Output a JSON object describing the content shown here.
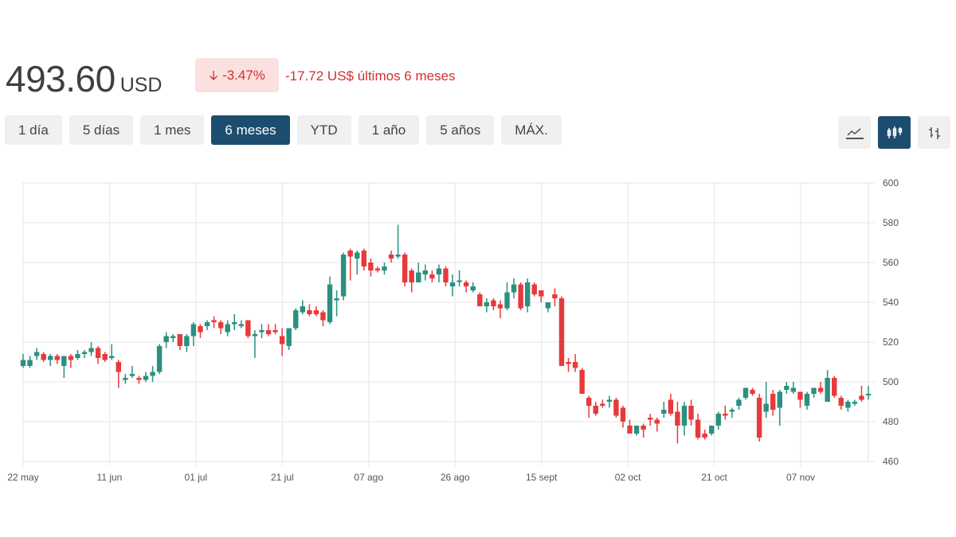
{
  "header": {
    "price": "493.60",
    "currency": "USD",
    "change_pct": "-3.47%",
    "change_text": "-17.72 US$ últimos 6 meses",
    "arrow_icon": "arrow-down-icon"
  },
  "ranges": [
    {
      "label": "1 día"
    },
    {
      "label": "5 días"
    },
    {
      "label": "1 mes"
    },
    {
      "label": "6 meses",
      "active": true
    },
    {
      "label": "YTD"
    },
    {
      "label": "1 año"
    },
    {
      "label": "5 años"
    },
    {
      "label": "MÁX."
    }
  ],
  "views": [
    {
      "icon": "line-chart-icon"
    },
    {
      "icon": "candlestick-icon",
      "active": true
    },
    {
      "icon": "ohlc-bar-icon"
    }
  ],
  "colors": {
    "up": "#2a9080",
    "down": "#e8393b",
    "accent": "#1d4d6e"
  },
  "chart_data": {
    "type": "candlestick",
    "ylim": [
      460,
      600
    ],
    "yticks": [
      600,
      580,
      560,
      540,
      520,
      500,
      480,
      460
    ],
    "xticks": [
      {
        "label": "22 may",
        "index": 0
      },
      {
        "label": "11 jun",
        "index": 13
      },
      {
        "label": "01 jul",
        "index": 26
      },
      {
        "label": "21 jul",
        "index": 39
      },
      {
        "label": "07 ago",
        "index": 52
      },
      {
        "label": "26 ago",
        "index": 65
      },
      {
        "label": "15 sept",
        "index": 78
      },
      {
        "label": "02 oct",
        "index": 91
      },
      {
        "label": "21 oct",
        "index": 104
      },
      {
        "label": "07 nov",
        "index": 117
      }
    ],
    "ohlc": [
      [
        508,
        514,
        507,
        511
      ],
      [
        508,
        513,
        507,
        511
      ],
      [
        513,
        517,
        511,
        515
      ],
      [
        514,
        515,
        510,
        511
      ],
      [
        511,
        514,
        508,
        513
      ],
      [
        513,
        514,
        509,
        511
      ],
      [
        508,
        513,
        502,
        513
      ],
      [
        513,
        514,
        507,
        511
      ],
      [
        512,
        516,
        511,
        514
      ],
      [
        514,
        516,
        512,
        515
      ],
      [
        515,
        520,
        513,
        517
      ],
      [
        517,
        518,
        509,
        512
      ],
      [
        514,
        515,
        510,
        511
      ],
      [
        512,
        519,
        511,
        513
      ],
      [
        510,
        511,
        497,
        505
      ],
      [
        501,
        504,
        499,
        502
      ],
      [
        503,
        508,
        502,
        504
      ],
      [
        502,
        503,
        499,
        501
      ],
      [
        501,
        505,
        500,
        503
      ],
      [
        503,
        508,
        500,
        505
      ],
      [
        505,
        519,
        504,
        518
      ],
      [
        520,
        525,
        517,
        523
      ],
      [
        522,
        524,
        520,
        523
      ],
      [
        524,
        524,
        516,
        518
      ],
      [
        518,
        524,
        515,
        523
      ],
      [
        523,
        530,
        518,
        529
      ],
      [
        528,
        529,
        522,
        525
      ],
      [
        528,
        531,
        526,
        530
      ],
      [
        531,
        533,
        527,
        530
      ],
      [
        530,
        531,
        524,
        527
      ],
      [
        525,
        531,
        523,
        529
      ],
      [
        529,
        534,
        526,
        530
      ],
      [
        528,
        531,
        527,
        529
      ],
      [
        531,
        531,
        522,
        523
      ],
      [
        523,
        526,
        512,
        524
      ],
      [
        525,
        529,
        522,
        526
      ],
      [
        526,
        529,
        523,
        524
      ],
      [
        526,
        529,
        524,
        525
      ],
      [
        523,
        527,
        513,
        519
      ],
      [
        518,
        527,
        516,
        527
      ],
      [
        527,
        537,
        526,
        536
      ],
      [
        535,
        541,
        534,
        538
      ],
      [
        536,
        539,
        533,
        534
      ],
      [
        536,
        538,
        533,
        534
      ],
      [
        535,
        536,
        528,
        531
      ],
      [
        530,
        553,
        529,
        549
      ],
      [
        541,
        546,
        533,
        542
      ],
      [
        543,
        565,
        541,
        564
      ],
      [
        566,
        567,
        551,
        563
      ],
      [
        562,
        566,
        554,
        565
      ],
      [
        566,
        567,
        556,
        558
      ],
      [
        560,
        562,
        553,
        556
      ],
      [
        557,
        558,
        555,
        556
      ],
      [
        556,
        560,
        554,
        558
      ],
      [
        564,
        566,
        560,
        562
      ],
      [
        563,
        579,
        562,
        564
      ],
      [
        564,
        565,
        548,
        550
      ],
      [
        556,
        557,
        545,
        550
      ],
      [
        550,
        560,
        550,
        555
      ],
      [
        554,
        559,
        551,
        556
      ],
      [
        554,
        556,
        550,
        552
      ],
      [
        554,
        559,
        550,
        557
      ],
      [
        557,
        558,
        548,
        550
      ],
      [
        548,
        554,
        543,
        550
      ],
      [
        551,
        556,
        548,
        551
      ],
      [
        550,
        551,
        545,
        548
      ],
      [
        546,
        550,
        545,
        548
      ],
      [
        544,
        545,
        538,
        538
      ],
      [
        538,
        542,
        535,
        540
      ],
      [
        541,
        542,
        536,
        538
      ],
      [
        539,
        541,
        532,
        537
      ],
      [
        537,
        550,
        536,
        545
      ],
      [
        545,
        552,
        542,
        549
      ],
      [
        549,
        550,
        536,
        537
      ],
      [
        538,
        552,
        535,
        550
      ],
      [
        549,
        550,
        543,
        544
      ],
      [
        546,
        546,
        540,
        543
      ],
      [
        537,
        540,
        535,
        540
      ],
      [
        544,
        547,
        538,
        542
      ],
      [
        542,
        543,
        508,
        508
      ],
      [
        510,
        512,
        505,
        509
      ],
      [
        510,
        514,
        505,
        507
      ],
      [
        506,
        507,
        494,
        494
      ],
      [
        492,
        493,
        482,
        488
      ],
      [
        488,
        490,
        483,
        484
      ],
      [
        489,
        491,
        487,
        488
      ],
      [
        490,
        493,
        487,
        491
      ],
      [
        491,
        492,
        482,
        483
      ],
      [
        487,
        488,
        477,
        480
      ],
      [
        478,
        481,
        474,
        474
      ],
      [
        474,
        478,
        473,
        478
      ],
      [
        478,
        479,
        472,
        476
      ],
      [
        482,
        484,
        478,
        481
      ],
      [
        481,
        482,
        475,
        479
      ],
      [
        484,
        490,
        482,
        486
      ],
      [
        491,
        494,
        483,
        484
      ],
      [
        485,
        490,
        469,
        478
      ],
      [
        478,
        490,
        473,
        488
      ],
      [
        488,
        491,
        478,
        481
      ],
      [
        481,
        484,
        471,
        472
      ],
      [
        474,
        476,
        471,
        472
      ],
      [
        474,
        478,
        473,
        478
      ],
      [
        478,
        485,
        476,
        484
      ],
      [
        484,
        488,
        481,
        483
      ],
      [
        485,
        487,
        482,
        486
      ],
      [
        488,
        492,
        486,
        491
      ],
      [
        492,
        497,
        491,
        497
      ],
      [
        496,
        497,
        493,
        494
      ],
      [
        492,
        494,
        470,
        472
      ],
      [
        485,
        500,
        482,
        489
      ],
      [
        494,
        496,
        483,
        486
      ],
      [
        487,
        496,
        478,
        495
      ],
      [
        496,
        500,
        494,
        498
      ],
      [
        495,
        500,
        494,
        497
      ],
      [
        495,
        495,
        487,
        491
      ],
      [
        488,
        495,
        486,
        494
      ],
      [
        494,
        497,
        492,
        497
      ],
      [
        497,
        500,
        494,
        495
      ],
      [
        490,
        506,
        490,
        502
      ],
      [
        502,
        503,
        492,
        493
      ],
      [
        492,
        493,
        486,
        488
      ],
      [
        487,
        491,
        485,
        490
      ],
      [
        489,
        491,
        488,
        490
      ],
      [
        493,
        498,
        490,
        491
      ],
      [
        494,
        498,
        491,
        494
      ]
    ]
  }
}
